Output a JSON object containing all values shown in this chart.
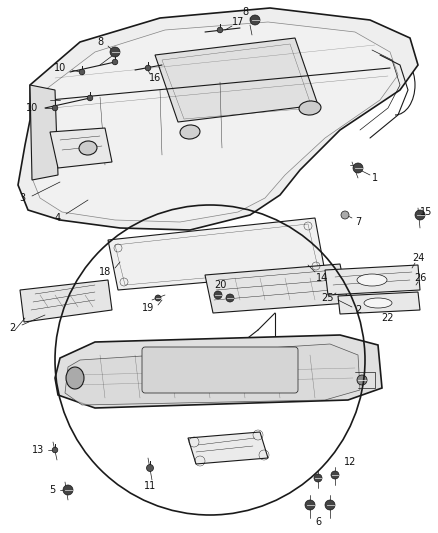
{
  "bg_color": "#ffffff",
  "fig_width": 4.38,
  "fig_height": 5.33,
  "dpi": 100,
  "line_color": "#1a1a1a",
  "light_gray": "#d8d8d8",
  "mid_gray": "#b0b0b0",
  "dark_gray": "#555555"
}
